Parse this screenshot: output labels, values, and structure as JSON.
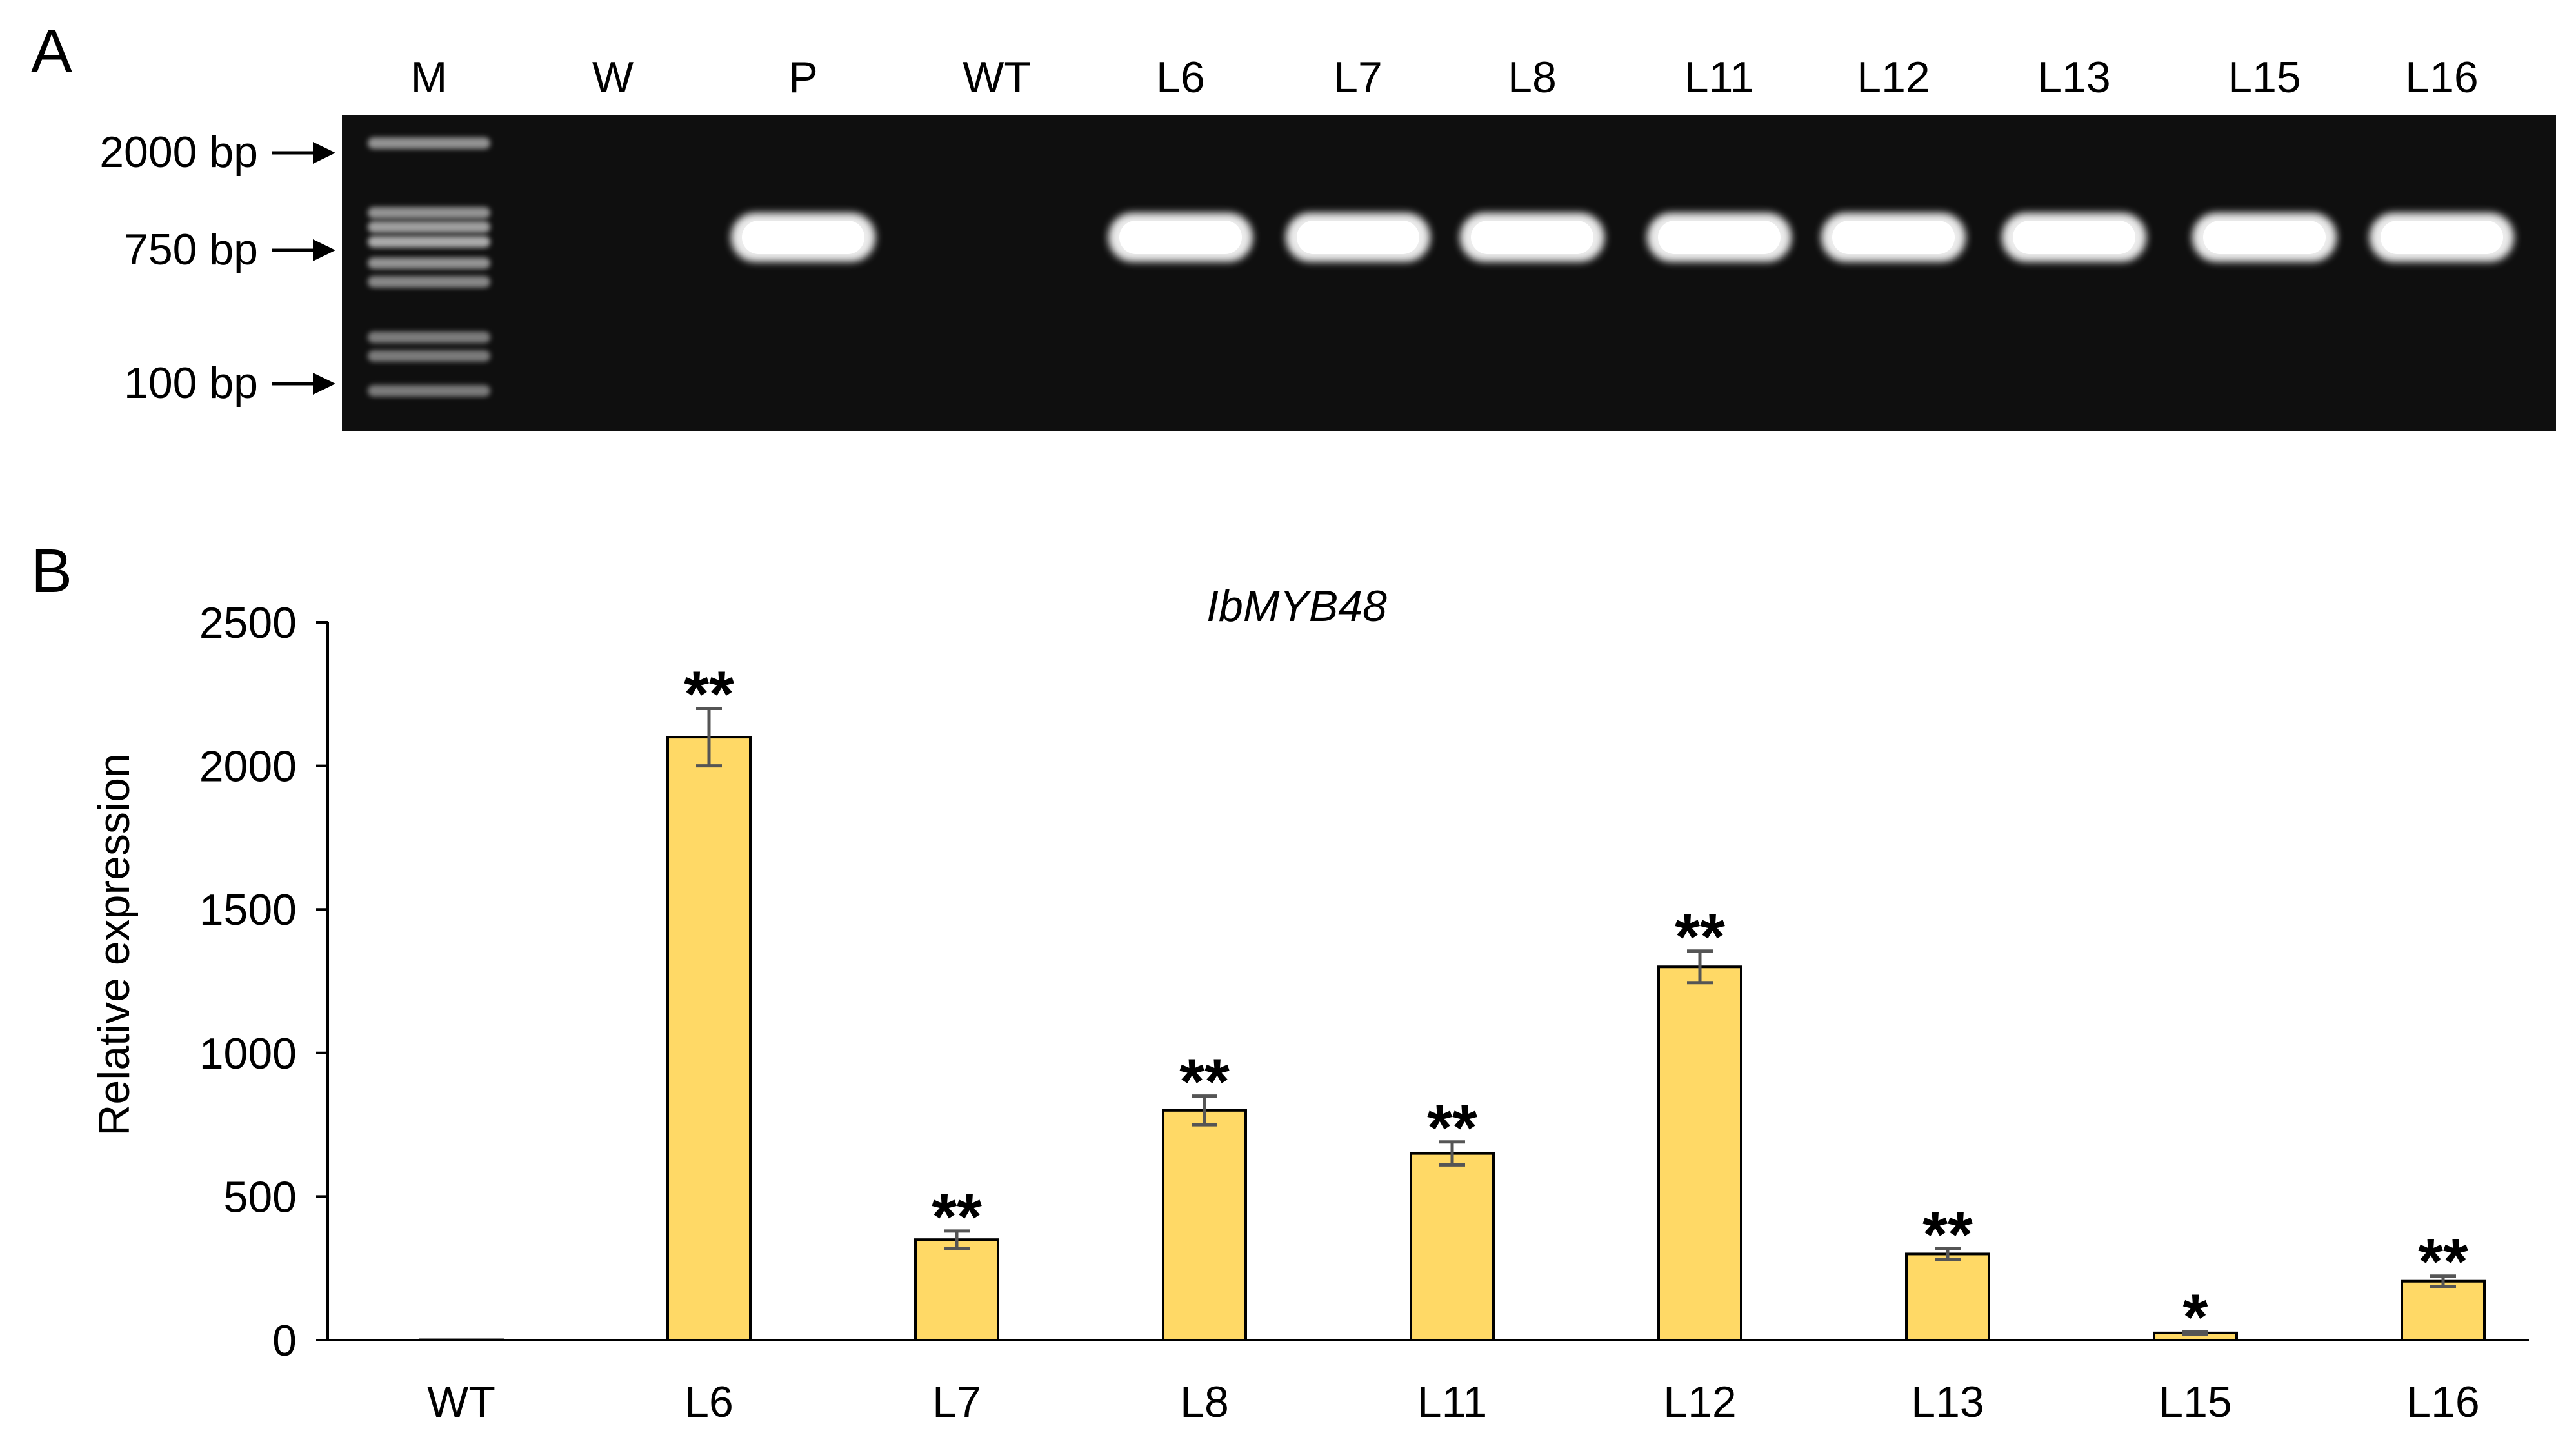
{
  "panel_a": {
    "label": "A",
    "lane_labels": [
      "M",
      "W",
      "P",
      "WT",
      "L6",
      "L7",
      "L8",
      "L11",
      "L12",
      "L13",
      "L15",
      "L16"
    ],
    "size_markers": [
      "2000 bp",
      "750 bp",
      "100 bp"
    ],
    "bands_present": [
      false,
      false,
      true,
      false,
      true,
      true,
      true,
      true,
      true,
      true,
      true,
      true
    ],
    "gel_color": "#0f0f0f",
    "band_color": "#ffffff"
  },
  "panel_b": {
    "label": "B"
  },
  "chart_data": {
    "type": "bar",
    "title": "IbMYB48",
    "xlabel": "",
    "ylabel": "Relative expression",
    "categories": [
      "WT",
      "L6",
      "L7",
      "L8",
      "L11",
      "L12",
      "L13",
      "L15",
      "L16"
    ],
    "values": [
      1,
      2100,
      350,
      800,
      650,
      1300,
      300,
      25,
      205
    ],
    "errors": [
      0,
      100,
      30,
      50,
      40,
      55,
      18,
      5,
      18
    ],
    "significance": [
      "",
      "**",
      "**",
      "**",
      "**",
      "**",
      "**",
      "*",
      "**"
    ],
    "ylim": [
      0,
      2500
    ],
    "yticks": [
      0,
      500,
      1000,
      1500,
      2000,
      2500
    ],
    "bar_color": "#FFD966",
    "bar_edge_color": "#000000",
    "error_bar_color": "#555555",
    "grid": false
  }
}
